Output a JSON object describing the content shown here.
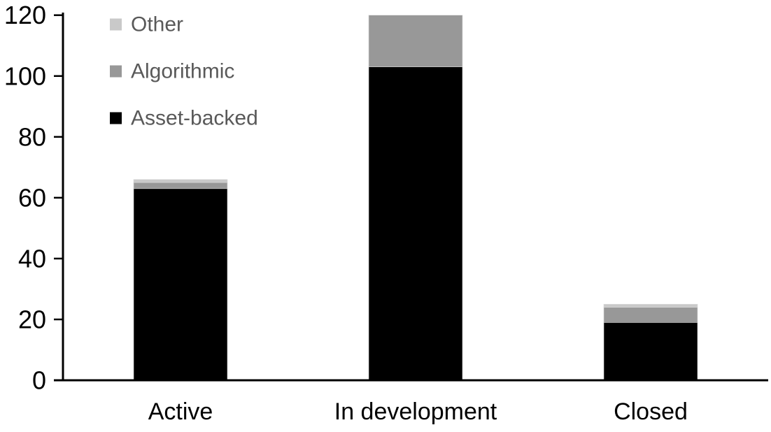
{
  "chart_data": {
    "type": "bar",
    "stacked": true,
    "title": "",
    "xlabel": "",
    "ylabel": "",
    "categories": [
      "Active",
      "In development",
      "Closed"
    ],
    "series": [
      {
        "name": "Asset-backed",
        "color": "#000000",
        "values": [
          63,
          103,
          19
        ]
      },
      {
        "name": "Algorithmic",
        "color": "#989898",
        "values": [
          2,
          17,
          5
        ]
      },
      {
        "name": "Other",
        "color": "#c9c9c9",
        "values": [
          1,
          0,
          1
        ]
      }
    ],
    "totals": [
      66,
      120,
      25
    ],
    "ylim": [
      0,
      120
    ],
    "yticks": [
      0,
      20,
      40,
      60,
      80,
      100,
      120
    ],
    "grid": false,
    "legend": {
      "position": "top-left",
      "order": [
        "Other",
        "Algorithmic",
        "Asset-backed"
      ],
      "text_color": "#595959"
    }
  },
  "colors": {
    "axis": "#000000",
    "tick_label": "#000000",
    "category_label": "#000000",
    "background": "#ffffff"
  }
}
